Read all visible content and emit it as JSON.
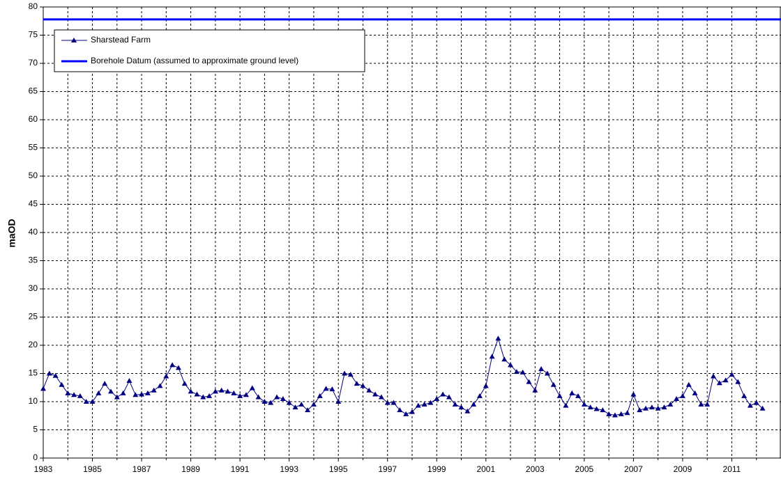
{
  "chart_data": {
    "type": "line",
    "y_label": "maOD",
    "xlim": [
      1983,
      2013
    ],
    "xticks": [
      1983,
      1985,
      1987,
      1989,
      1991,
      1993,
      1995,
      1997,
      1999,
      2001,
      2003,
      2005,
      2007,
      2009,
      2011
    ],
    "x_minor_ticks": [
      1984,
      1986,
      1988,
      1990,
      1992,
      1994,
      1996,
      1998,
      2000,
      2002,
      2004,
      2006,
      2008,
      2010,
      2012
    ],
    "ylim": [
      0,
      80
    ],
    "yticks": [
      0,
      5,
      10,
      15,
      20,
      25,
      30,
      35,
      40,
      45,
      50,
      55,
      60,
      65,
      70,
      75,
      80
    ],
    "grid": true,
    "legend": "upper-left",
    "x": [
      1983,
      1983.25,
      1983.5,
      1983.75,
      1984,
      1984.25,
      1984.5,
      1984.75,
      1985,
      1985.25,
      1985.5,
      1985.75,
      1986,
      1986.25,
      1986.5,
      1986.75,
      1987,
      1987.25,
      1987.5,
      1987.75,
      1988,
      1988.25,
      1988.5,
      1988.75,
      1989,
      1989.25,
      1989.5,
      1989.75,
      1990,
      1990.25,
      1990.5,
      1990.75,
      1991,
      1991.25,
      1991.5,
      1991.75,
      1992,
      1992.25,
      1992.5,
      1992.75,
      1993,
      1993.25,
      1993.5,
      1993.75,
      1994,
      1994.25,
      1994.5,
      1994.75,
      1995,
      1995.25,
      1995.5,
      1995.75,
      1996,
      1996.25,
      1996.5,
      1996.75,
      1997,
      1997.25,
      1997.5,
      1997.75,
      1998,
      1998.25,
      1998.5,
      1998.75,
      1999,
      1999.25,
      1999.5,
      1999.75,
      2000,
      2000.25,
      2000.5,
      2000.75,
      2001,
      2001.25,
      2001.5,
      2001.75,
      2002,
      2002.25,
      2002.5,
      2002.75,
      2003,
      2003.25,
      2003.5,
      2003.75,
      2004,
      2004.25,
      2004.5,
      2004.75,
      2005,
      2005.25,
      2005.5,
      2005.75,
      2006,
      2006.25,
      2006.5,
      2006.75,
      2007,
      2007.25,
      2007.5,
      2007.75,
      2008,
      2008.25,
      2008.5,
      2008.75,
      2009,
      2009.25,
      2009.5,
      2009.75,
      2010,
      2010.25,
      2010.5,
      2010.75,
      2011,
      2011.25,
      2011.5,
      2011.75,
      2012,
      2012.25
    ],
    "series": [
      {
        "name": "Sharstead Farm",
        "color": "#000080",
        "values": [
          12.3,
          15.0,
          14.6,
          13.0,
          11.5,
          11.2,
          11.0,
          10.0,
          10.0,
          11.5,
          13.2,
          11.8,
          10.8,
          11.5,
          13.7,
          11.2,
          11.3,
          11.5,
          12.0,
          12.8,
          14.5,
          16.5,
          16.0,
          13.2,
          11.8,
          11.3,
          10.8,
          11.0,
          11.8,
          12.0,
          11.8,
          11.5,
          11.0,
          11.2,
          12.4,
          10.8,
          10.0,
          9.8,
          10.8,
          10.5,
          9.8,
          9.0,
          9.5,
          8.5,
          9.5,
          11.0,
          12.3,
          12.2,
          10.0,
          15.0,
          14.8,
          13.2,
          12.8,
          12.0,
          11.3,
          10.8,
          9.8,
          9.8,
          8.5,
          7.8,
          8.2,
          9.3,
          9.5,
          9.8,
          10.5,
          11.3,
          10.8,
          9.5,
          9.0,
          8.3,
          9.5,
          11.0,
          12.8,
          18.0,
          21.2,
          17.5,
          16.5,
          15.3,
          15.2,
          13.5,
          12.0,
          15.8,
          15.0,
          13.0,
          11.0,
          9.3,
          11.5,
          11.0,
          9.5,
          9.0,
          8.7,
          8.5,
          7.8,
          7.6,
          7.8,
          8.0,
          11.3,
          8.5,
          8.8,
          9.0,
          8.8,
          9.0,
          9.5,
          10.5,
          11.0,
          13.0,
          11.5,
          9.5,
          9.5,
          14.5,
          13.3,
          13.8,
          14.8,
          13.5,
          11.0,
          9.3,
          9.8,
          8.8
        ]
      }
    ],
    "reference_line": {
      "name": "Borehole Datum (assumed to approximate ground level)",
      "color": "#0000ff",
      "value": 77.8
    }
  }
}
